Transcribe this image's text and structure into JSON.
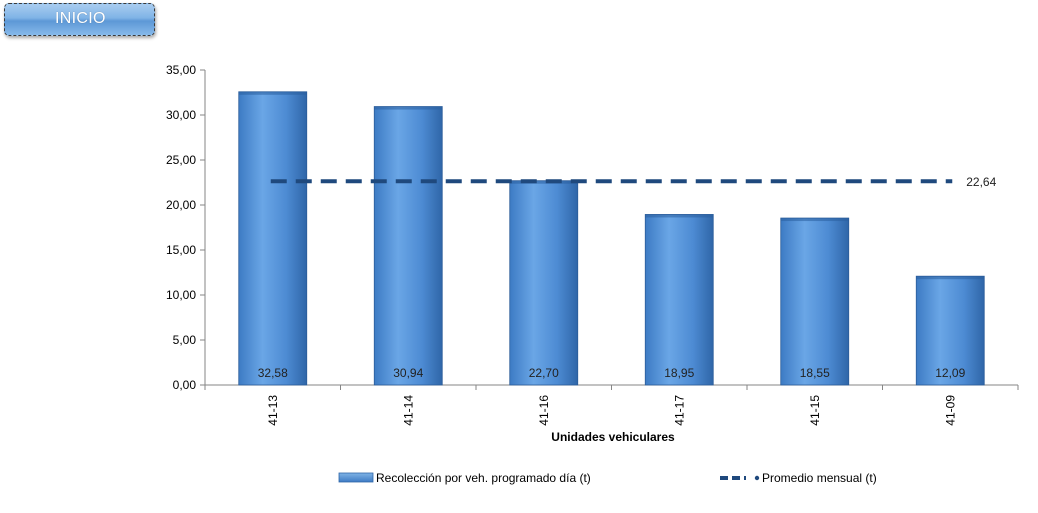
{
  "header": {
    "inicio_label": "INICIO"
  },
  "chart_data": {
    "type": "bar",
    "categories": [
      "41-13",
      "41-14",
      "41-16",
      "41-17",
      "41-15",
      "41-09"
    ],
    "series": [
      {
        "name": "Recolección por veh. programado día (t)",
        "values": [
          32.58,
          30.94,
          22.7,
          18.95,
          18.55,
          12.09
        ],
        "value_labels": [
          "32,58",
          "30,94",
          "22,70",
          "18,95",
          "18,55",
          "12,09"
        ],
        "color": "#4f8fd6"
      },
      {
        "name": "Promedio mensual (t)",
        "type": "line",
        "style": "dashed",
        "value": 22.64,
        "value_label": "22,64",
        "color": "#1f497d"
      }
    ],
    "xlabel": "Unidades vehiculares",
    "ylabel": "",
    "ylim": [
      0,
      35
    ],
    "y_ticks": [
      "0,00",
      "5,00",
      "10,00",
      "15,00",
      "20,00",
      "25,00",
      "30,00",
      "35,00"
    ],
    "grid": false,
    "legend_position": "bottom"
  }
}
